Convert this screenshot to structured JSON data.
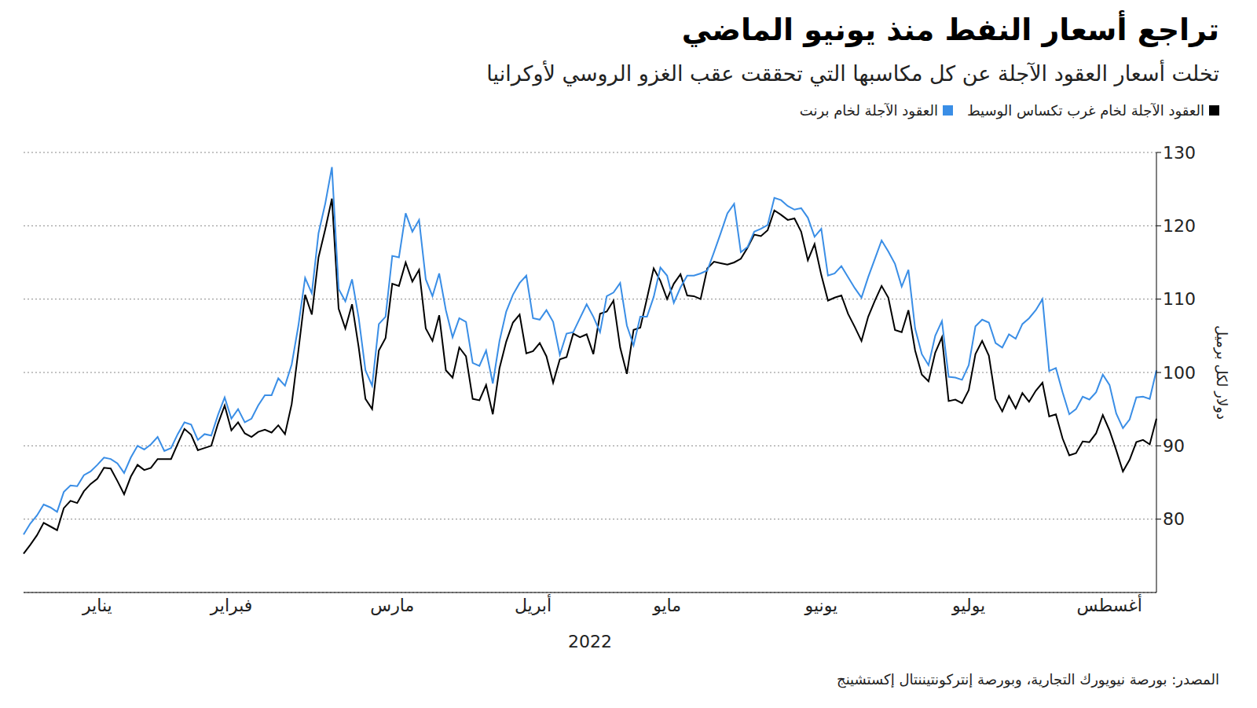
{
  "chart_data": {
    "type": "line",
    "title": "تراجع أسعار النفط منذ يونيو الماضي",
    "subtitle": "تخلت أسعار العقود الآجلة عن كل مكاسبها التي تحققت عقب الغزو الروسي لأوكرانيا",
    "y_label": "دولار لكل برميل",
    "x_label": "2022",
    "source": "المصدر: بورصة نيويورك التجارية، وبورصة إنتركونتيننتال إكستشينج",
    "legend": "top right",
    "grid": true,
    "ylim": [
      70,
      130
    ],
    "yticks": [
      80,
      90,
      100,
      110,
      120,
      130
    ],
    "categories": [
      null,
      null,
      null,
      null,
      null,
      null,
      null,
      null,
      null,
      null,
      null,
      "يناير",
      null,
      null,
      null,
      null,
      null,
      null,
      null,
      null,
      null,
      null,
      null,
      null,
      null,
      null,
      null,
      null,
      null,
      null,
      null,
      "فبراير",
      null,
      null,
      null,
      null,
      null,
      null,
      null,
      null,
      null,
      null,
      null,
      null,
      null,
      null,
      null,
      null,
      null,
      null,
      null,
      null,
      null,
      null,
      null,
      "مارس",
      null,
      null,
      null,
      null,
      null,
      null,
      null,
      null,
      null,
      null,
      null,
      null,
      null,
      null,
      null,
      null,
      null,
      null,
      null,
      null,
      "أبريل",
      null,
      null,
      null,
      null,
      null,
      null,
      null,
      null,
      null,
      null,
      null,
      null,
      null,
      null,
      null,
      null,
      null,
      null,
      null,
      "مايو",
      null,
      null,
      null,
      null,
      null,
      null,
      null,
      null,
      null,
      null,
      null,
      null,
      null,
      null,
      null,
      null,
      null,
      null,
      null,
      null,
      null,
      null,
      "يونيو",
      null,
      null,
      null,
      null,
      null,
      null,
      null,
      null,
      null,
      null,
      null,
      null,
      null,
      null,
      null,
      null,
      null,
      null,
      null,
      null,
      null,
      "يوليو",
      null,
      null,
      null,
      null,
      null,
      null,
      null,
      null,
      null,
      null,
      null,
      null,
      null,
      null,
      null,
      null,
      null,
      null,
      null,
      null,
      "أغسطس",
      null,
      null,
      null,
      null,
      null,
      null,
      null
    ],
    "series": [
      {
        "name": "العقود الآجلة لخام غرب تكساس الوسيط",
        "color": "#000000",
        "values": [
          75.3,
          76.5,
          77.8,
          79.5,
          79,
          78.5,
          81.5,
          82.5,
          82.2,
          83.8,
          84.8,
          85.5,
          87,
          86.9,
          85.2,
          83.4,
          85.8,
          87.4,
          86.7,
          87,
          88.2,
          88.2,
          88.2,
          90.3,
          92.3,
          91.5,
          89.4,
          89.7,
          90,
          93,
          95.5,
          92.1,
          93.2,
          91.7,
          91.2,
          91.9,
          92.2,
          91.8,
          92.8,
          91.6,
          95.7,
          103,
          110.6,
          107.9,
          115.7,
          119.5,
          123.7,
          108.7,
          106,
          109.3,
          103.4,
          96.4,
          95,
          103,
          104.7,
          112.1,
          111.8,
          115,
          112.4,
          114,
          106,
          104.3,
          107.8,
          100.3,
          99.3,
          103.4,
          102.2,
          96.4,
          96.2,
          98.3,
          94.3,
          100.6,
          104.2,
          106.8,
          107.9,
          102.6,
          102.9,
          104,
          102.2,
          98.6,
          101.8,
          102.1,
          105.3,
          104.8,
          105.2,
          102.5,
          108,
          108.3,
          109.8,
          103.4,
          99.8,
          105.8,
          106.1,
          110.1,
          114.2,
          112.5,
          110,
          112.1,
          113.4,
          110.5,
          110.4,
          110,
          114.2,
          115.1,
          114.9,
          114.7,
          115,
          115.5,
          117,
          118.8,
          118.6,
          119.4,
          122.1,
          121.5,
          120.8,
          121,
          119.2,
          115.3,
          117.5,
          113.3,
          109.8,
          110.2,
          110.5,
          108,
          106.2,
          104.3,
          107.6,
          109.8,
          111.8,
          110.2,
          105.8,
          105.5,
          108.5,
          103,
          99.7,
          98.8,
          102.7,
          104.8,
          96.1,
          96.3,
          95.8,
          97.6,
          102.5,
          104.3,
          102.3,
          96.4,
          94.7,
          96.8,
          95.1,
          97.2,
          96,
          97.5,
          98.6,
          94,
          94.3,
          91,
          88.7,
          89,
          90.6,
          90.5,
          91.7,
          94.2,
          92.1,
          89.4,
          86.5,
          88.1,
          90.5,
          90.8,
          90.2,
          93.7
        ]
      },
      {
        "name": "العقود الآجلة لخام برنت",
        "color": "#3a8ee6",
        "values": [
          77.9,
          79.4,
          80.5,
          82,
          81.6,
          81,
          83.7,
          84.6,
          84.5,
          86,
          86.5,
          87.4,
          88.4,
          88.2,
          87.6,
          86.3,
          88.4,
          90,
          89.5,
          90.2,
          91.2,
          89.3,
          89.7,
          91.6,
          93.2,
          92.9,
          90.8,
          91.6,
          91.4,
          94.2,
          96.6,
          93.7,
          95,
          93.2,
          93.7,
          95.5,
          96.9,
          96.9,
          99.2,
          98.2,
          101.1,
          106.4,
          112.9,
          110.8,
          119,
          123,
          128,
          111.4,
          109.7,
          112.7,
          107.4,
          100.3,
          98.2,
          106.6,
          107.6,
          115.9,
          115.7,
          121.7,
          119.2,
          120.8,
          112.7,
          110.4,
          113.5,
          108.5,
          104.8,
          107.4,
          106.9,
          101.3,
          100.9,
          103,
          98.5,
          104.3,
          108.3,
          110.6,
          112.2,
          113.2,
          107.4,
          107.2,
          108.5,
          106.9,
          102.4,
          105.3,
          105.5,
          107.4,
          109.3,
          107.6,
          105.5,
          110.4,
          110.9,
          112.2,
          106.4,
          103.7,
          107.6,
          107.6,
          110.3,
          114.3,
          113.2,
          109.5,
          111.6,
          113.2,
          113.2,
          113.5,
          113.9,
          116.4,
          119,
          121.7,
          123,
          116.4,
          117.1,
          119.2,
          119.6,
          120.1,
          123.8,
          123.5,
          122.7,
          122.2,
          122.4,
          121.1,
          118.5,
          119.6,
          113.2,
          113.5,
          114.5,
          113,
          111.5,
          110.2,
          113,
          115.5,
          118,
          116.5,
          114.8,
          111.7,
          114,
          106,
          102.5,
          101,
          105,
          107,
          99.4,
          99.3,
          99,
          101,
          106.3,
          107.2,
          106.8,
          104,
          103.4,
          105.2,
          104.6,
          106.6,
          107.4,
          108.5,
          110,
          100.2,
          100.6,
          97.3,
          94.3,
          95,
          96.7,
          96.3,
          97.3,
          99.7,
          98.3,
          94.4,
          92.4,
          93.6,
          96.6,
          96.7,
          96.4,
          100.3
        ]
      }
    ]
  }
}
